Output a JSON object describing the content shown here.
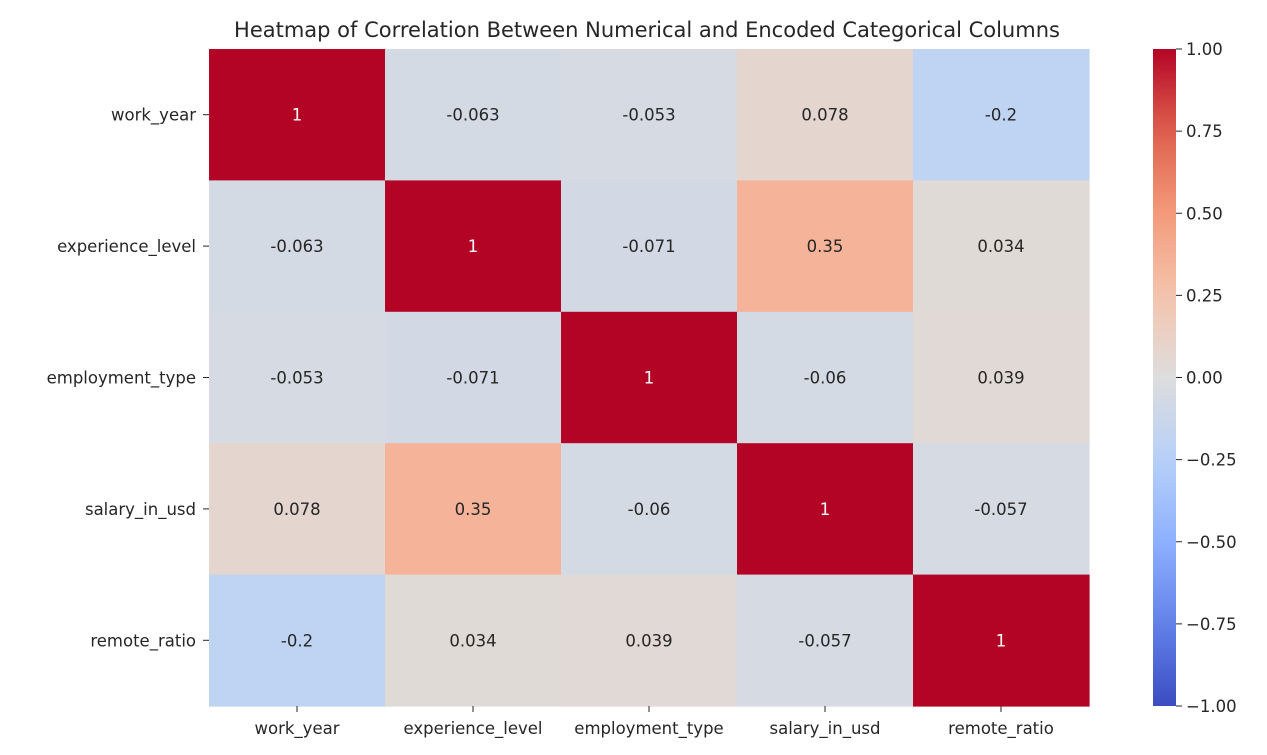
{
  "chart_data": {
    "type": "heatmap",
    "title": "Heatmap of Correlation Between Numerical and Encoded Categorical Columns",
    "xlabel": "",
    "ylabel": "",
    "x_categories": [
      "work_year",
      "experience_level",
      "employment_type",
      "salary_in_usd",
      "remote_ratio"
    ],
    "y_categories": [
      "work_year",
      "experience_level",
      "employment_type",
      "salary_in_usd",
      "remote_ratio"
    ],
    "values": [
      [
        1,
        -0.063,
        -0.053,
        0.078,
        -0.2
      ],
      [
        -0.063,
        1,
        -0.071,
        0.35,
        0.034
      ],
      [
        -0.053,
        -0.071,
        1,
        -0.06,
        0.039
      ],
      [
        0.078,
        0.35,
        -0.06,
        1,
        -0.057
      ],
      [
        -0.2,
        0.034,
        0.039,
        -0.057,
        1
      ]
    ],
    "annotations": [
      [
        "1",
        "-0.063",
        "-0.053",
        "0.078",
        "-0.2"
      ],
      [
        "-0.063",
        "1",
        "-0.071",
        "0.35",
        "0.034"
      ],
      [
        "-0.053",
        "-0.071",
        "1",
        "-0.06",
        "0.039"
      ],
      [
        "0.078",
        "0.35",
        "-0.06",
        "1",
        "-0.057"
      ],
      [
        "-0.2",
        "0.034",
        "0.039",
        "-0.057",
        "1"
      ]
    ],
    "colormap": "coolwarm",
    "vmin": -1,
    "vmax": 1,
    "colorbar_ticks": [
      1.0,
      0.75,
      0.5,
      0.25,
      0.0,
      -0.25,
      -0.5,
      -0.75,
      -1.0
    ],
    "colorbar_tick_labels": [
      "1.00",
      "0.75",
      "0.50",
      "0.25",
      "0.00",
      "−0.25",
      "−0.50",
      "−0.75",
      "−1.00"
    ],
    "grid": false
  }
}
